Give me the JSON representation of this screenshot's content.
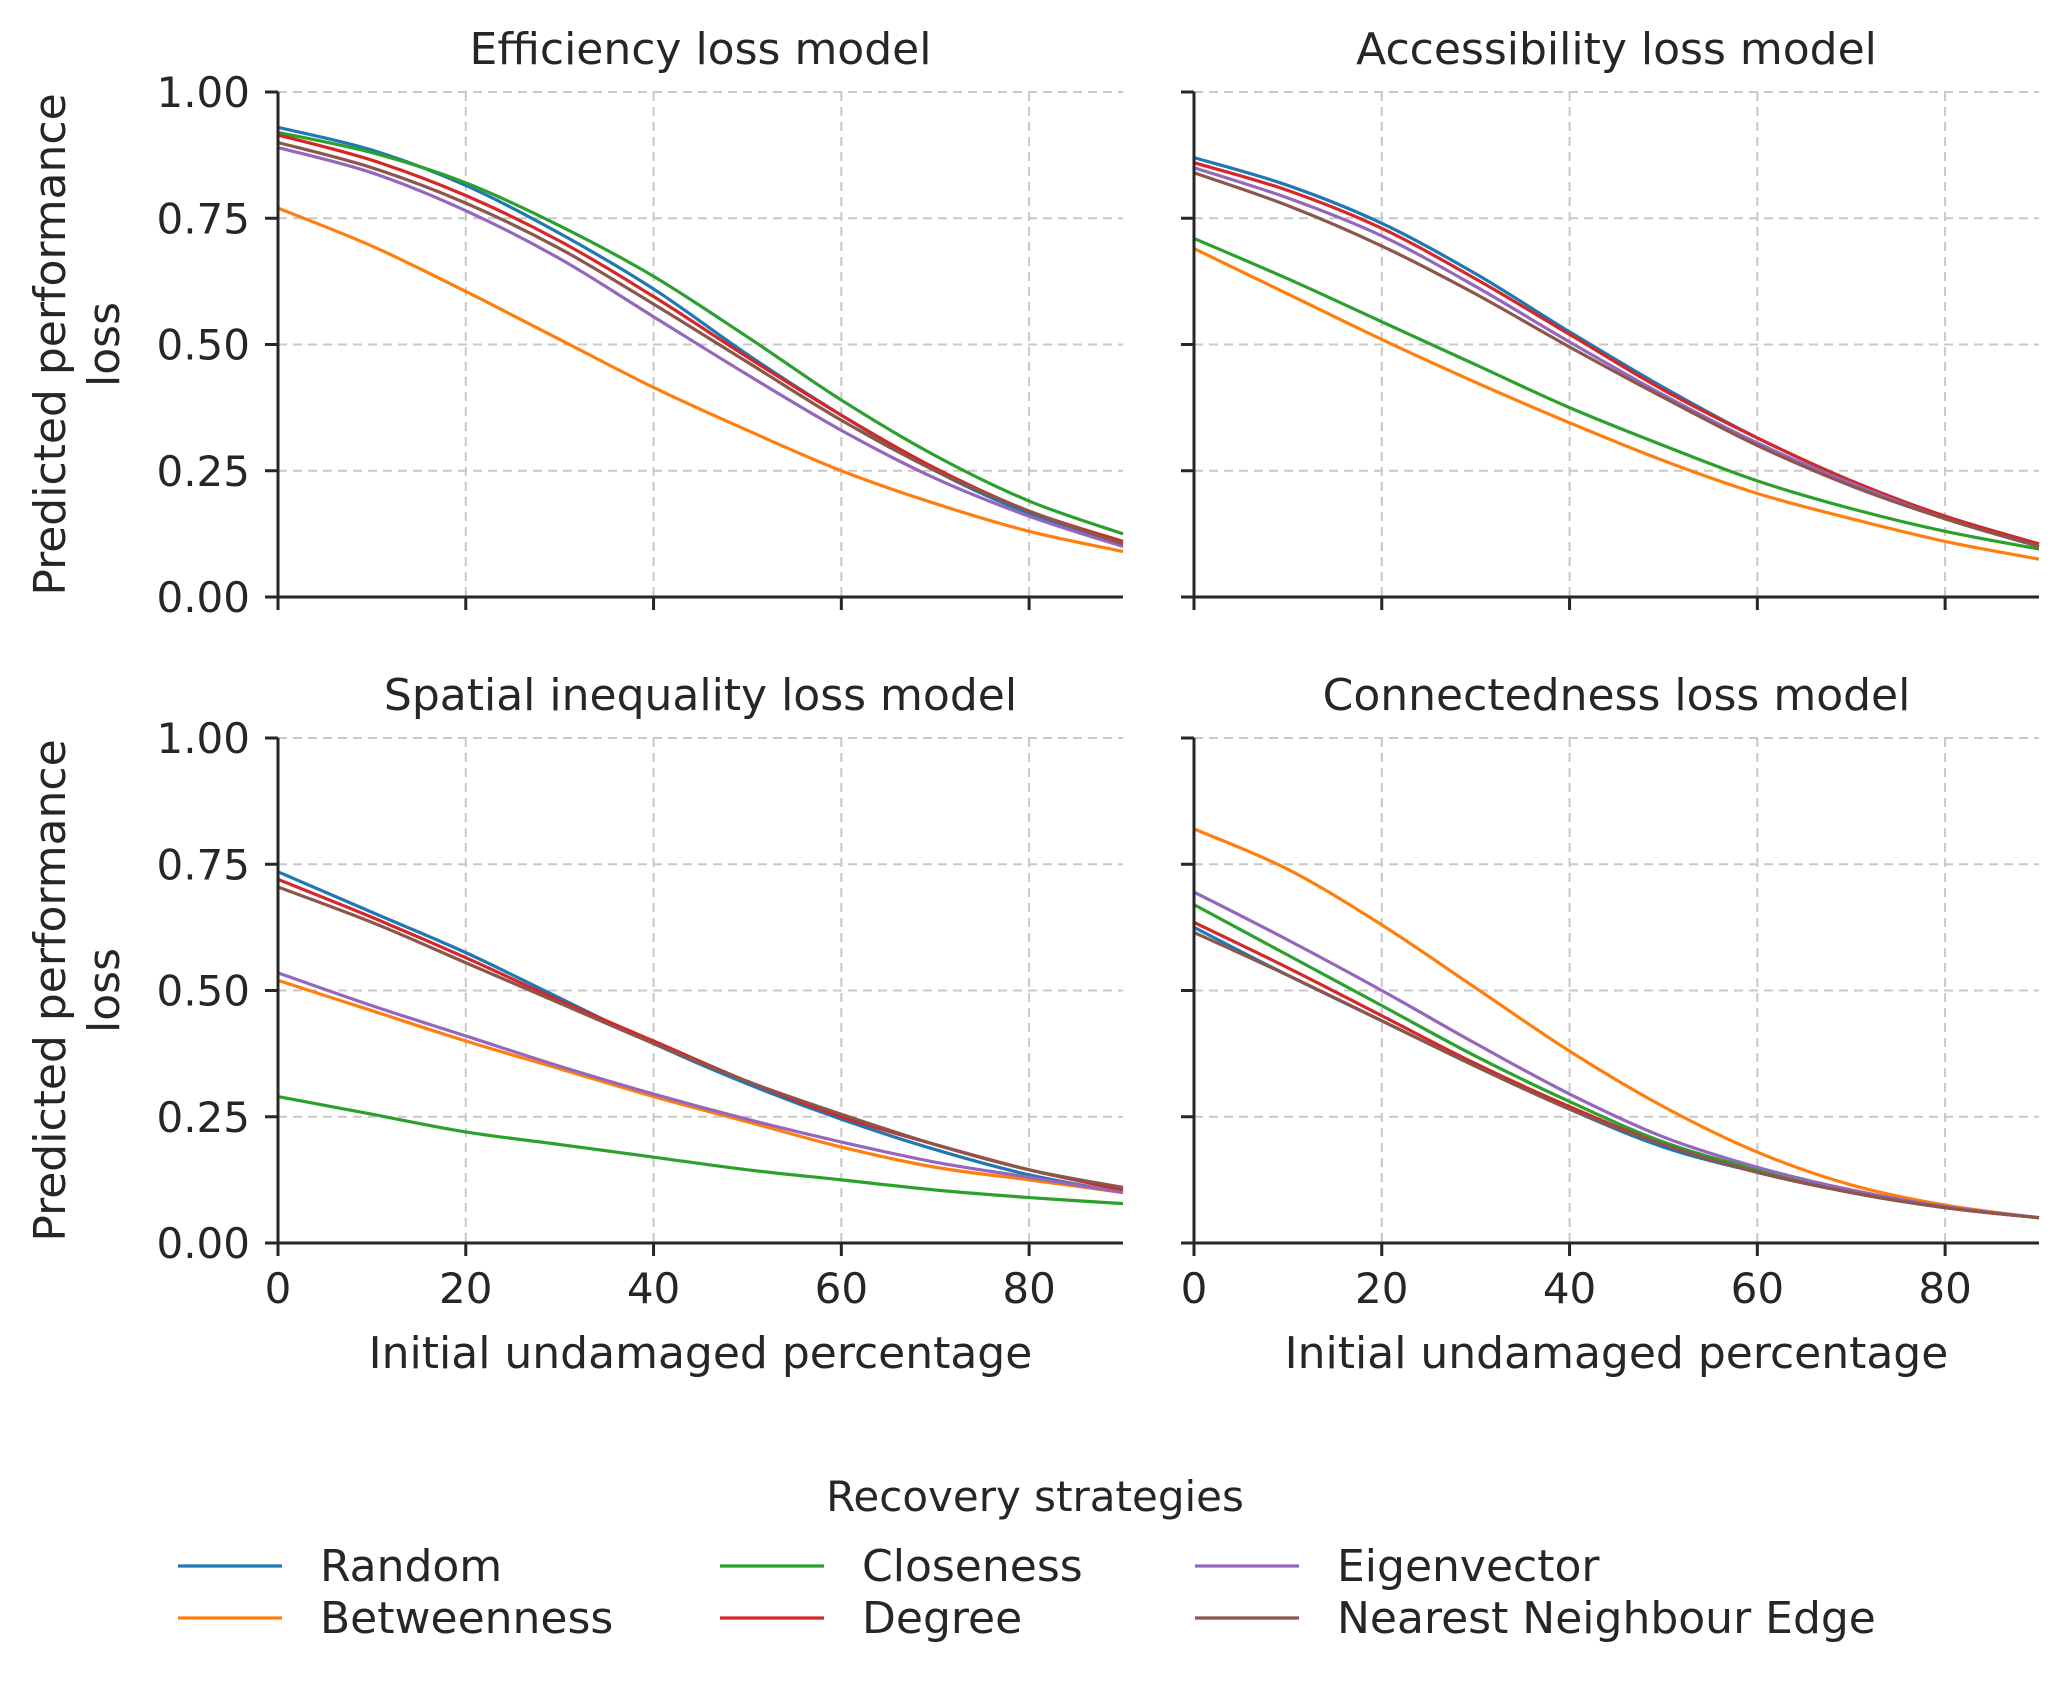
{
  "chart_data": [
    {
      "type": "line",
      "title": "Efficiency loss model",
      "xlabel": "",
      "ylabel": "Predicted performance\nloss",
      "xlim": [
        0,
        90
      ],
      "ylim": [
        0,
        1
      ],
      "x": [
        0,
        10,
        20,
        30,
        40,
        50,
        60,
        70,
        80,
        90
      ],
      "series": [
        {
          "name": "Random",
          "values": [
            0.93,
            0.885,
            0.815,
            0.72,
            0.61,
            0.48,
            0.36,
            0.25,
            0.165,
            0.105
          ]
        },
        {
          "name": "Betweenness",
          "values": [
            0.77,
            0.695,
            0.605,
            0.51,
            0.415,
            0.33,
            0.25,
            0.185,
            0.13,
            0.09
          ]
        },
        {
          "name": "Closeness",
          "values": [
            0.92,
            0.88,
            0.82,
            0.735,
            0.635,
            0.515,
            0.39,
            0.28,
            0.19,
            0.125
          ]
        },
        {
          "name": "Degree",
          "values": [
            0.915,
            0.865,
            0.795,
            0.705,
            0.595,
            0.475,
            0.36,
            0.255,
            0.17,
            0.11
          ]
        },
        {
          "name": "Eigenvector",
          "values": [
            0.89,
            0.84,
            0.765,
            0.67,
            0.555,
            0.44,
            0.33,
            0.235,
            0.16,
            0.1
          ]
        },
        {
          "name": "Nearest Neighbour Edge",
          "values": [
            0.9,
            0.85,
            0.78,
            0.69,
            0.58,
            0.465,
            0.35,
            0.25,
            0.17,
            0.105
          ]
        }
      ]
    },
    {
      "type": "line",
      "title": "Accessibility loss model",
      "xlabel": "",
      "ylabel": "",
      "xlim": [
        0,
        90
      ],
      "ylim": [
        0,
        1
      ],
      "x": [
        0,
        10,
        20,
        30,
        40,
        50,
        60,
        70,
        80,
        90
      ],
      "series": [
        {
          "name": "Random",
          "values": [
            0.87,
            0.815,
            0.74,
            0.64,
            0.525,
            0.415,
            0.315,
            0.23,
            0.16,
            0.105
          ]
        },
        {
          "name": "Betweenness",
          "values": [
            0.69,
            0.6,
            0.51,
            0.425,
            0.345,
            0.27,
            0.205,
            0.155,
            0.11,
            0.075
          ]
        },
        {
          "name": "Closeness",
          "values": [
            0.71,
            0.63,
            0.545,
            0.46,
            0.375,
            0.3,
            0.23,
            0.175,
            0.13,
            0.095
          ]
        },
        {
          "name": "Degree",
          "values": [
            0.86,
            0.805,
            0.73,
            0.63,
            0.52,
            0.41,
            0.315,
            0.23,
            0.16,
            0.105
          ]
        },
        {
          "name": "Eigenvector",
          "values": [
            0.85,
            0.79,
            0.715,
            0.615,
            0.505,
            0.4,
            0.305,
            0.225,
            0.155,
            0.1
          ]
        },
        {
          "name": "Nearest Neighbour Edge",
          "values": [
            0.84,
            0.775,
            0.695,
            0.6,
            0.495,
            0.395,
            0.3,
            0.22,
            0.155,
            0.1
          ]
        }
      ]
    },
    {
      "type": "line",
      "title": "Spatial inequality loss model",
      "xlabel": "Initial undamaged percentage",
      "ylabel": "Predicted performance\nloss",
      "xlim": [
        0,
        90
      ],
      "ylim": [
        0,
        1
      ],
      "x": [
        0,
        10,
        20,
        30,
        40,
        50,
        60,
        70,
        80,
        90
      ],
      "series": [
        {
          "name": "Random",
          "values": [
            0.735,
            0.655,
            0.575,
            0.485,
            0.395,
            0.315,
            0.245,
            0.185,
            0.135,
            0.1
          ]
        },
        {
          "name": "Betweenness",
          "values": [
            0.52,
            0.46,
            0.4,
            0.345,
            0.29,
            0.24,
            0.19,
            0.15,
            0.125,
            0.1
          ]
        },
        {
          "name": "Closeness",
          "values": [
            0.29,
            0.255,
            0.22,
            0.195,
            0.17,
            0.145,
            0.125,
            0.105,
            0.09,
            0.078
          ]
        },
        {
          "name": "Degree",
          "values": [
            0.72,
            0.645,
            0.565,
            0.48,
            0.4,
            0.32,
            0.25,
            0.195,
            0.145,
            0.105
          ]
        },
        {
          "name": "Eigenvector",
          "values": [
            0.535,
            0.47,
            0.41,
            0.35,
            0.295,
            0.245,
            0.2,
            0.16,
            0.13,
            0.1
          ]
        },
        {
          "name": "Nearest Neighbour Edge",
          "values": [
            0.705,
            0.635,
            0.555,
            0.475,
            0.395,
            0.32,
            0.255,
            0.195,
            0.145,
            0.11
          ]
        }
      ]
    },
    {
      "type": "line",
      "title": "Connectedness loss model",
      "xlabel": "Initial undamaged percentage",
      "ylabel": "",
      "xlim": [
        0,
        90
      ],
      "ylim": [
        0,
        1
      ],
      "x": [
        0,
        10,
        20,
        30,
        40,
        50,
        60,
        70,
        80,
        90
      ],
      "series": [
        {
          "name": "Random",
          "values": [
            0.625,
            0.53,
            0.44,
            0.35,
            0.265,
            0.19,
            0.14,
            0.1,
            0.07,
            0.05
          ]
        },
        {
          "name": "Betweenness",
          "values": [
            0.82,
            0.74,
            0.63,
            0.505,
            0.38,
            0.27,
            0.18,
            0.115,
            0.075,
            0.05
          ]
        },
        {
          "name": "Closeness",
          "values": [
            0.67,
            0.57,
            0.47,
            0.37,
            0.28,
            0.2,
            0.145,
            0.1,
            0.07,
            0.05
          ]
        },
        {
          "name": "Degree",
          "values": [
            0.635,
            0.545,
            0.45,
            0.355,
            0.27,
            0.195,
            0.14,
            0.1,
            0.07,
            0.05
          ]
        },
        {
          "name": "Eigenvector",
          "values": [
            0.695,
            0.6,
            0.5,
            0.395,
            0.295,
            0.21,
            0.15,
            0.105,
            0.072,
            0.05
          ]
        },
        {
          "name": "Nearest Neighbour Edge",
          "values": [
            0.615,
            0.53,
            0.44,
            0.35,
            0.265,
            0.195,
            0.14,
            0.1,
            0.07,
            0.05
          ]
        }
      ]
    }
  ],
  "axes_ticks": {
    "x": [
      "0",
      "20",
      "40",
      "60",
      "80"
    ],
    "y": [
      "0.00",
      "0.25",
      "0.50",
      "0.75",
      "1.00"
    ]
  },
  "grid": true,
  "legend": {
    "title": "Recovery strategies",
    "placement": "bottom-center",
    "entries": [
      {
        "name": "Random",
        "color": "#1f77b4"
      },
      {
        "name": "Betweenness",
        "color": "#ff7f0e"
      },
      {
        "name": "Closeness",
        "color": "#2ca02c"
      },
      {
        "name": "Degree",
        "color": "#d62728"
      },
      {
        "name": "Eigenvector",
        "color": "#9467bd"
      },
      {
        "name": "Nearest Neighbour Edge",
        "color": "#8c564b"
      }
    ]
  }
}
